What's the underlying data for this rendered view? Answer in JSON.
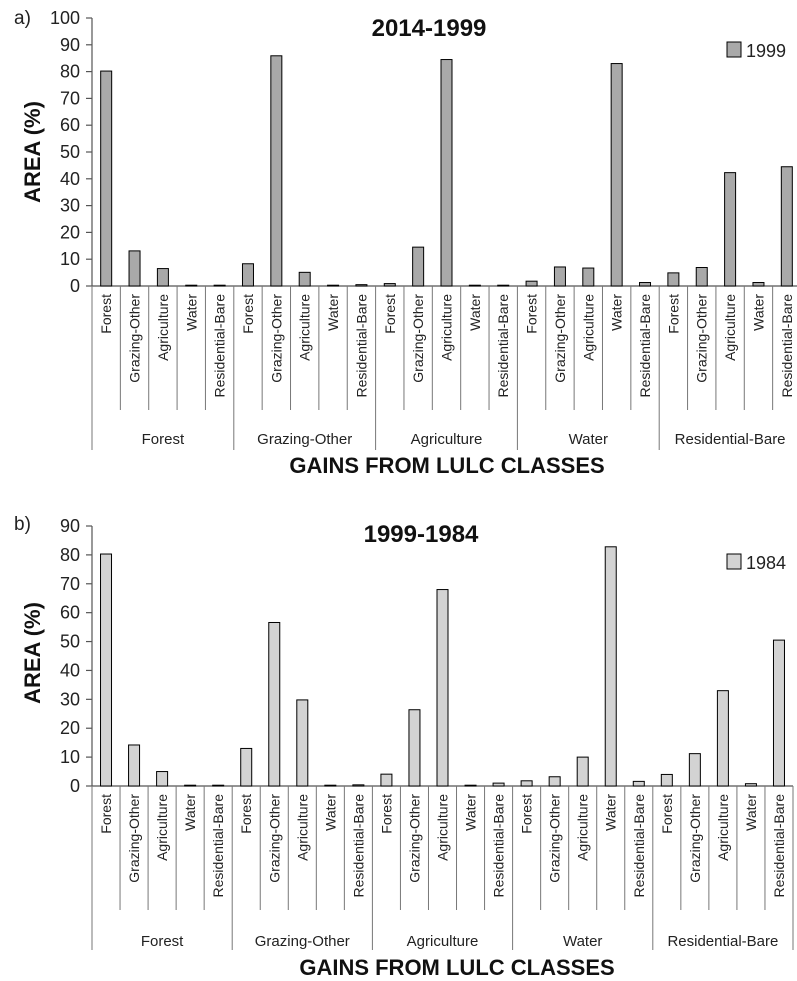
{
  "chart_data": [
    {
      "type": "bar",
      "panel_label": "a)",
      "title": "2014-1999",
      "ylabel": "AREA (%)",
      "xlabel": "GAINS FROM LULC CLASSES",
      "ylim": [
        0,
        100
      ],
      "yticks": [
        0,
        10,
        20,
        30,
        40,
        50,
        60,
        70,
        80,
        90,
        100
      ],
      "grid": false,
      "legend_position": "top-right",
      "groups": [
        "Forest",
        "Grazing-Other",
        "Agriculture",
        "Water",
        "Residential-Bare"
      ],
      "categories": [
        "Forest",
        "Grazing-Other",
        "Agriculture",
        "Water",
        "Residential-Bare"
      ],
      "series": [
        {
          "name": "1999",
          "color": "#a9a9a9",
          "values": [
            [
              80.2,
              13.1,
              6.5,
              0.0,
              0.0
            ],
            [
              8.3,
              85.9,
              5.1,
              0.0,
              0.5
            ],
            [
              0.9,
              14.5,
              84.5,
              0.0,
              0.0
            ],
            [
              1.8,
              7.1,
              6.7,
              83.0,
              1.3
            ],
            [
              4.9,
              6.9,
              42.3,
              1.3,
              44.5
            ]
          ]
        }
      ]
    },
    {
      "type": "bar",
      "panel_label": "b)",
      "title": "1999-1984",
      "ylabel": "AREA (%)",
      "xlabel": "GAINS FROM LULC CLASSES",
      "ylim": [
        0,
        90
      ],
      "yticks": [
        0,
        10,
        20,
        30,
        40,
        50,
        60,
        70,
        80,
        90
      ],
      "grid": false,
      "legend_position": "top-right",
      "groups": [
        "Forest",
        "Grazing-Other",
        "Agriculture",
        "Water",
        "Residential-Bare"
      ],
      "categories": [
        "Forest",
        "Grazing-Other",
        "Agriculture",
        "Water",
        "Residential-Bare"
      ],
      "series": [
        {
          "name": "1984",
          "color": "#d3d3d3",
          "values": [
            [
              80.3,
              14.2,
              5.0,
              0.0,
              0.0
            ],
            [
              13.0,
              56.6,
              29.8,
              0.0,
              0.4
            ],
            [
              4.1,
              26.4,
              68.0,
              0.2,
              1.0
            ],
            [
              1.8,
              3.2,
              10.0,
              82.8,
              1.6
            ],
            [
              4.0,
              11.2,
              33.0,
              0.8,
              50.5
            ]
          ]
        }
      ]
    }
  ]
}
